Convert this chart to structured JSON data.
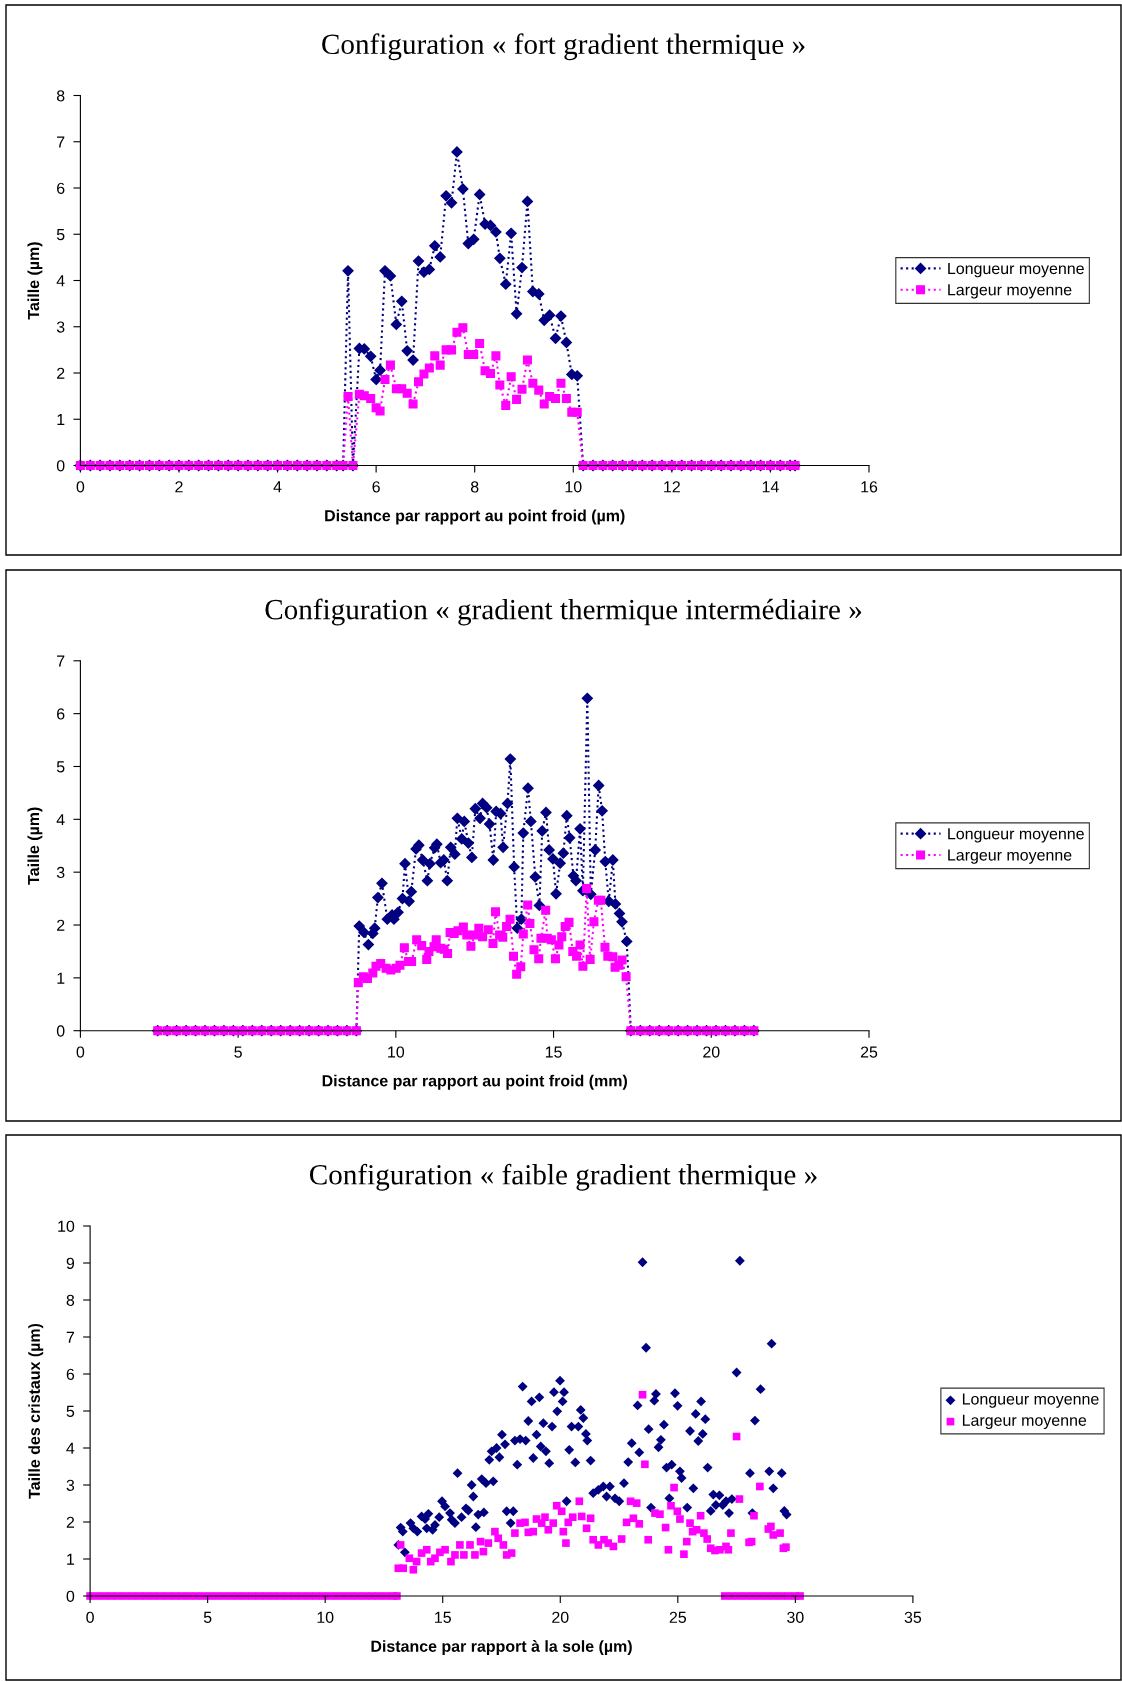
{
  "chart_data": [
    {
      "type": "line",
      "title": "Configuration « fort gradient thermique »",
      "xlabel": "Distance par rapport au point froid (µm)",
      "ylabel": "Taille (µm)",
      "xlim": [
        0,
        16
      ],
      "ylim": [
        0,
        8
      ],
      "xticks": [
        0,
        2,
        4,
        6,
        8,
        10,
        12,
        14,
        16
      ],
      "yticks": [
        0,
        1,
        2,
        3,
        4,
        5,
        6,
        7,
        8
      ],
      "line_style": "dotted",
      "legend": "right",
      "x": [
        0,
        0.2,
        0.4,
        0.6,
        0.8,
        1,
        1.2,
        1.4,
        1.6,
        1.8,
        2,
        2.2,
        2.4,
        2.6,
        2.8,
        3,
        3.2,
        3.4,
        3.6,
        3.8,
        4,
        4.2,
        4.4,
        4.6,
        4.8,
        5,
        5.2,
        5.33,
        5.43,
        5.53,
        5.66,
        5.76,
        5.89,
        6.0,
        6.08,
        6.18,
        6.29,
        6.41,
        6.52,
        6.63,
        6.75,
        6.86,
        6.97,
        7.08,
        7.19,
        7.3,
        7.42,
        7.53,
        7.64,
        7.76,
        7.87,
        7.98,
        8.1,
        8.21,
        8.32,
        8.43,
        8.51,
        8.63,
        8.74,
        8.85,
        8.96,
        9.07,
        9.18,
        9.3,
        9.41,
        9.52,
        9.64,
        9.75,
        9.86,
        9.97,
        10.08,
        10.2,
        10.4,
        10.6,
        10.8,
        11,
        11.2,
        11.4,
        11.6,
        11.8,
        12,
        12.2,
        12.4,
        12.6,
        12.8,
        13,
        13.2,
        13.4,
        13.6,
        13.8,
        14,
        14.2,
        14.4,
        14.5
      ],
      "series": [
        {
          "name": "Longueur moyenne",
          "color": "#000080",
          "marker": "diamond",
          "values": [
            0,
            0,
            0,
            0,
            0,
            0,
            0,
            0,
            0,
            0,
            0,
            0,
            0,
            0,
            0,
            0,
            0,
            0,
            0,
            0,
            0,
            0,
            0,
            0,
            0,
            0,
            0,
            0,
            4.21,
            0,
            2.53,
            2.52,
            2.36,
            1.86,
            2.06,
            4.21,
            4.1,
            3.05,
            3.55,
            2.48,
            2.28,
            4.42,
            4.18,
            4.24,
            4.75,
            4.51,
            5.83,
            5.68,
            6.78,
            5.98,
            4.8,
            4.89,
            5.86,
            5.22,
            5.19,
            5.05,
            4.48,
            3.92,
            5.02,
            3.28,
            4.28,
            5.71,
            3.76,
            3.71,
            3.14,
            3.25,
            2.75,
            3.23,
            2.66,
            1.97,
            1.94,
            0,
            0,
            0,
            0,
            0,
            0,
            0,
            0,
            0,
            0,
            0,
            0,
            0,
            0,
            0,
            0,
            0,
            0,
            0,
            0,
            0,
            0,
            0
          ]
        },
        {
          "name": "Largeur moyenne",
          "color": "#ff00ff",
          "marker": "square",
          "values": [
            0,
            0,
            0,
            0,
            0,
            0,
            0,
            0,
            0,
            0,
            0,
            0,
            0,
            0,
            0,
            0,
            0,
            0,
            0,
            0,
            0,
            0,
            0,
            0,
            0,
            0,
            0,
            0,
            1.49,
            0,
            1.54,
            1.51,
            1.45,
            1.25,
            1.18,
            1.86,
            2.17,
            1.66,
            1.66,
            1.56,
            1.33,
            1.81,
            1.98,
            2.11,
            2.37,
            2.17,
            2.5,
            2.5,
            2.88,
            2.98,
            2.4,
            2.4,
            2.64,
            2.05,
            1.99,
            2.37,
            1.74,
            1.3,
            1.92,
            1.43,
            1.65,
            2.28,
            1.78,
            1.63,
            1.33,
            1.49,
            1.45,
            1.78,
            1.45,
            1.15,
            1.15,
            0,
            0,
            0,
            0,
            0,
            0,
            0,
            0,
            0,
            0,
            0,
            0,
            0,
            0,
            0,
            0,
            0,
            0,
            0,
            0,
            0,
            0,
            0
          ]
        }
      ]
    },
    {
      "type": "line",
      "title": "Configuration « gradient thermique intermédiaire »",
      "xlabel": "Distance par rapport au point froid (mm)",
      "ylabel": "Taille (µm)",
      "xlim": [
        0,
        25
      ],
      "ylim": [
        0,
        7
      ],
      "xticks": [
        0,
        5,
        10,
        15,
        20,
        25
      ],
      "yticks": [
        0,
        1,
        2,
        3,
        4,
        5,
        6,
        7
      ],
      "line_style": "dotted",
      "legend": "right",
      "series": [
        {
          "name": "Longueur moyenne",
          "color": "#000080",
          "marker": "diamond",
          "x": [
            2.45,
            2.75,
            3.05,
            3.35,
            3.65,
            3.95,
            4.25,
            4.55,
            4.85,
            5.15,
            5.45,
            5.75,
            6.05,
            6.35,
            6.65,
            6.95,
            7.25,
            7.55,
            7.85,
            8.15,
            8.45,
            8.75,
            8.84,
            8.99,
            9.13,
            9.27,
            9.33,
            9.43,
            9.56,
            9.73,
            9.88,
            9.94,
            10.07,
            10.21,
            10.29,
            10.42,
            10.49,
            10.64,
            10.73,
            10.85,
            11.0,
            11.08,
            11.23,
            11.3,
            11.42,
            11.52,
            11.63,
            11.74,
            11.87,
            11.95,
            12.09,
            12.17,
            12.3,
            12.41,
            12.52,
            12.67,
            12.75,
            12.88,
            12.97,
            13.09,
            13.18,
            13.32,
            13.4,
            13.54,
            13.63,
            13.75,
            13.85,
            13.98,
            14.04,
            14.19,
            14.28,
            14.42,
            14.55,
            14.64,
            14.76,
            14.86,
            14.98,
            15.08,
            15.21,
            15.31,
            15.42,
            15.51,
            15.63,
            15.71,
            15.84,
            15.93,
            16.07,
            16.18,
            16.32,
            16.43,
            16.54,
            16.64,
            16.75,
            16.88,
            16.96,
            17.09,
            17.17,
            17.32,
            17.45,
            17.75,
            18.05,
            18.35,
            18.65,
            18.95,
            19.25,
            19.55,
            19.85,
            20.15,
            20.45,
            20.75,
            21.05,
            21.35
          ],
          "values": [
            0,
            0,
            0,
            0,
            0,
            0,
            0,
            0,
            0,
            0,
            0,
            0,
            0,
            0,
            0,
            0,
            0,
            0,
            0,
            0,
            0,
            0,
            1.98,
            1.86,
            1.63,
            1.84,
            1.94,
            2.52,
            2.79,
            2.11,
            2.19,
            2.11,
            2.24,
            2.5,
            3.16,
            2.45,
            2.63,
            3.44,
            3.51,
            3.23,
            2.84,
            3.16,
            3.46,
            3.53,
            3.18,
            3.23,
            2.84,
            3.47,
            3.34,
            4.02,
            3.63,
            3.96,
            3.55,
            3.28,
            4.2,
            4.02,
            4.3,
            4.22,
            3.91,
            3.23,
            4.15,
            4.11,
            3.47,
            4.3,
            5.14,
            3.1,
            1.94,
            2.11,
            3.74,
            4.59,
            3.96,
            2.91,
            2.37,
            3.78,
            4.13,
            3.42,
            3.25,
            2.59,
            3.17,
            3.36,
            4.07,
            3.65,
            2.93,
            2.84,
            3.82,
            2.65,
            6.29,
            2.58,
            3.42,
            4.64,
            4.16,
            3.2,
            2.45,
            3.23,
            2.4,
            2.22,
            2.06,
            1.69,
            0,
            0,
            0,
            0,
            0,
            0,
            0,
            0,
            0,
            0,
            0,
            0,
            0,
            0
          ]
        },
        {
          "name": "Largeur moyenne",
          "color": "#ff00ff",
          "marker": "square",
          "x": [
            2.45,
            2.75,
            3.05,
            3.35,
            3.65,
            3.95,
            4.25,
            4.55,
            4.85,
            5.15,
            5.45,
            5.75,
            6.05,
            6.35,
            6.65,
            6.95,
            7.25,
            7.55,
            7.85,
            8.15,
            8.45,
            8.75,
            8.81,
            8.97,
            9.1,
            9.27,
            9.37,
            9.52,
            9.69,
            9.84,
            10.01,
            10.13,
            10.27,
            10.4,
            10.5,
            10.66,
            10.82,
            10.98,
            11.05,
            11.21,
            11.28,
            11.42,
            11.53,
            11.64,
            11.72,
            11.85,
            11.97,
            12.14,
            12.25,
            12.38,
            12.51,
            12.63,
            12.75,
            12.93,
            13.08,
            13.16,
            13.29,
            13.39,
            13.51,
            13.62,
            13.73,
            13.83,
            13.96,
            14.04,
            14.18,
            14.25,
            14.38,
            14.53,
            14.6,
            14.75,
            14.8,
            14.93,
            15.06,
            15.17,
            15.26,
            15.37,
            15.49,
            15.61,
            15.73,
            15.84,
            15.93,
            16.05,
            16.16,
            16.28,
            16.42,
            16.5,
            16.63,
            16.72,
            16.88,
            16.95,
            17.07,
            17.17,
            17.3,
            17.45,
            17.75,
            18.05,
            18.35,
            18.65,
            18.95,
            19.25,
            19.55,
            19.85,
            20.15,
            20.45,
            20.75,
            21.05,
            21.35
          ],
          "values": [
            0,
            0,
            0,
            0,
            0,
            0,
            0,
            0,
            0,
            0,
            0,
            0,
            0,
            0,
            0,
            0,
            0,
            0,
            0,
            0,
            0,
            0,
            0.91,
            1.02,
            0.99,
            1.09,
            1.22,
            1.27,
            1.18,
            1.15,
            1.18,
            1.24,
            1.57,
            1.31,
            1.31,
            1.72,
            1.61,
            1.35,
            1.5,
            1.59,
            1.72,
            1.56,
            1.54,
            1.46,
            1.86,
            1.84,
            1.89,
            1.96,
            1.81,
            1.6,
            1.81,
            1.94,
            1.78,
            1.91,
            1.65,
            2.25,
            1.81,
            1.77,
            1.97,
            2.11,
            1.41,
            1.07,
            1.21,
            1.83,
            2.38,
            2.03,
            1.53,
            1.36,
            1.75,
            2.28,
            1.75,
            1.72,
            1.36,
            1.62,
            1.78,
            1.97,
            2.05,
            1.5,
            1.41,
            1.62,
            1.22,
            2.69,
            1.35,
            2.06,
            2.47,
            2.47,
            1.58,
            1.41,
            1.4,
            1.2,
            1.24,
            1.34,
            1.02,
            0,
            0,
            0,
            0,
            0,
            0,
            0,
            0,
            0,
            0,
            0,
            0,
            0,
            0
          ]
        }
      ]
    },
    {
      "type": "scatter",
      "title": "Configuration « faible gradient thermique »",
      "xlabel": "Distance par rapport à la sole (µm)",
      "ylabel": "Taille des cristaux (µm)",
      "xlim": [
        0,
        35
      ],
      "ylim": [
        0,
        10
      ],
      "xticks": [
        0,
        5,
        10,
        15,
        20,
        25,
        30,
        35
      ],
      "yticks": [
        0,
        1,
        2,
        3,
        4,
        5,
        6,
        7,
        8,
        9,
        10
      ],
      "legend": "right",
      "series": [
        {
          "name": "Longueur moyenne",
          "color": "#000080",
          "marker": "diamond",
          "x": [
            13.21,
            13.3,
            13.11,
            13.39,
            13.63,
            13.75,
            13.92,
            14.1,
            14.25,
            14.39,
            14.32,
            14.57,
            14.67,
            14.85,
            14.97,
            15.1,
            15.31,
            15.38,
            15.52,
            15.63,
            15.8,
            15.99,
            16.09,
            16.23,
            16.3,
            16.41,
            16.51,
            16.75,
            16.66,
            16.84,
            17.15,
            16.98,
            17.08,
            17.29,
            17.41,
            17.52,
            17.65,
            17.72,
            17.89,
            18.0,
            18.07,
            18.17,
            18.29,
            18.53,
            18.4,
            18.64,
            18.78,
            18.85,
            18.99,
            19.11,
            19.17,
            19.28,
            19.39,
            19.53,
            19.65,
            19.73,
            19.87,
            19.99,
            20.1,
            20.16,
            20.27,
            20.38,
            20.48,
            20.64,
            20.77,
            20.87,
            20.98,
            21.09,
            21.15,
            21.29,
            21.4,
            21.62,
            21.83,
            21.97,
            22.11,
            22.33,
            22.51,
            22.71,
            22.89,
            23.04,
            23.36,
            23.29,
            23.5,
            23.65,
            23.76,
            23.86,
            24.0,
            24.07,
            24.18,
            24.28,
            24.41,
            24.52,
            24.64,
            24.74,
            24.88,
            24.99,
            25.09,
            25.16,
            25.4,
            25.52,
            25.66,
            25.76,
            25.87,
            25.99,
            26.06,
            26.17,
            26.27,
            26.4,
            26.51,
            26.62,
            26.77,
            26.91,
            27.05,
            27.18,
            27.3,
            27.5,
            27.64,
            28.07,
            28.17,
            28.28,
            28.52,
            28.89,
            28.99,
            29.06,
            29.42,
            29.53,
            29.63
          ],
          "values": [
            1.85,
            1.74,
            1.38,
            1.18,
            1.97,
            1.83,
            1.74,
            2.15,
            2.08,
            2.22,
            1.83,
            1.79,
            1.92,
            2.13,
            2.56,
            2.42,
            2.24,
            2.06,
            1.97,
            3.32,
            2.13,
            2.37,
            2.31,
            3.0,
            2.69,
            1.86,
            2.2,
            2.26,
            3.16,
            3.05,
            3.1,
            3.68,
            3.91,
            4.0,
            3.75,
            4.36,
            4.1,
            2.29,
            1.97,
            2.29,
            4.2,
            3.55,
            4.24,
            4.2,
            5.66,
            4.73,
            5.26,
            3.73,
            4.36,
            5.37,
            4.04,
            4.67,
            3.91,
            3.59,
            4.58,
            5.51,
            4.99,
            5.82,
            5.26,
            5.51,
            2.56,
            3.95,
            4.58,
            3.61,
            4.58,
            5.03,
            4.81,
            4.38,
            4.2,
            3.66,
            2.78,
            2.87,
            2.96,
            2.69,
            2.96,
            2.64,
            2.56,
            3.05,
            3.62,
            4.13,
            3.88,
            5.15,
            9.02,
            6.71,
            4.51,
            2.39,
            5.28,
            5.46,
            4.02,
            4.22,
            4.63,
            3.47,
            2.64,
            3.55,
            5.48,
            5.14,
            3.37,
            3.19,
            2.39,
            4.46,
            2.91,
            4.92,
            4.19,
            5.26,
            4.38,
            4.78,
            3.47,
            2.3,
            2.74,
            2.46,
            2.72,
            2.46,
            2.56,
            2.24,
            2.62,
            6.04,
            9.06,
            3.32,
            2.24,
            4.74,
            5.59,
            3.37,
            6.82,
            2.91,
            3.32,
            2.3,
            2.2
          ]
        },
        {
          "name": "Largeur moyenne",
          "color": "#ff00ff",
          "marker": "square",
          "x": [
            0,
            0.3,
            0.6,
            0.9,
            1.2,
            1.5,
            1.8,
            2.1,
            2.4,
            2.7,
            3,
            3.3,
            3.6,
            3.9,
            4.2,
            4.5,
            4.8,
            5.1,
            5.4,
            5.7,
            6,
            6.3,
            6.6,
            6.9,
            7.2,
            7.5,
            7.8,
            8.1,
            8.4,
            8.7,
            9,
            9.3,
            9.6,
            9.9,
            10.2,
            10.5,
            10.8,
            11.1,
            11.4,
            11.7,
            12,
            12.3,
            12.6,
            12.9,
            13.05,
            13.21,
            13.11,
            13.32,
            13.58,
            13.75,
            13.89,
            14.1,
            14.32,
            14.49,
            14.67,
            14.88,
            15.1,
            15.35,
            15.52,
            15.73,
            15.9,
            16.16,
            16.37,
            16.61,
            16.73,
            16.94,
            17.22,
            17.36,
            17.58,
            17.72,
            17.93,
            18.07,
            18.29,
            18.5,
            18.64,
            18.85,
            18.99,
            19.21,
            19.35,
            19.49,
            19.7,
            19.85,
            20.06,
            20.13,
            20.24,
            20.34,
            20.53,
            20.81,
            20.91,
            21.12,
            21.29,
            21.4,
            21.62,
            21.86,
            22.04,
            22.26,
            22.61,
            22.82,
            23.11,
            23.36,
            22.99,
            23.25,
            23.5,
            23.6,
            23.74,
            24.03,
            24.24,
            24.48,
            24.6,
            24.71,
            24.84,
            24.98,
            25.09,
            25.26,
            25.38,
            25.52,
            25.63,
            25.8,
            25.97,
            26.11,
            26.25,
            26.4,
            26.58,
            26.79,
            27.05,
            27.15,
            27.26,
            27.5,
            27.62,
            28.03,
            28.14,
            28.24,
            28.49,
            28.85,
            28.96,
            29.06,
            29.35,
            29.49,
            29.6,
            27.0,
            27.3,
            27.6,
            27.9,
            28.2,
            28.5,
            28.8,
            29.1,
            29.4,
            29.7,
            30.0,
            30.2
          ],
          "values": [
            0,
            0,
            0,
            0,
            0,
            0,
            0,
            0,
            0,
            0,
            0,
            0,
            0,
            0,
            0,
            0,
            0,
            0,
            0,
            0,
            0,
            0,
            0,
            0,
            0,
            0,
            0,
            0,
            0,
            0,
            0,
            0,
            0,
            0,
            0,
            0,
            0,
            0,
            0,
            0,
            0,
            0,
            0,
            0,
            0,
            1.38,
            0.75,
            0.75,
            1.02,
            0.71,
            0.93,
            1.16,
            1.25,
            0.93,
            1.02,
            1.18,
            1.25,
            0.93,
            1.11,
            1.38,
            1.11,
            1.38,
            1.11,
            1.47,
            1.2,
            1.43,
            1.74,
            1.56,
            1.38,
            1.11,
            1.16,
            1.7,
            1.97,
            1.99,
            1.72,
            1.74,
            2.08,
            1.97,
            2.13,
            1.79,
            1.97,
            2.44,
            2.29,
            1.74,
            1.43,
            1.99,
            2.13,
            2.56,
            2.15,
            1.83,
            2.1,
            1.52,
            1.38,
            1.52,
            1.43,
            1.34,
            1.54,
            1.99,
            2.1,
            1.95,
            2.56,
            2.51,
            5.44,
            3.56,
            1.52,
            2.24,
            2.21,
            1.85,
            1.25,
            2.44,
            2.93,
            2.29,
            2.08,
            1.13,
            1.47,
            1.97,
            1.74,
            1.79,
            2.17,
            1.7,
            1.54,
            1.29,
            1.23,
            1.25,
            1.34,
            1.25,
            1.7,
            4.31,
            2.62,
            1.45,
            1.47,
            2.17,
            2.96,
            1.81,
            1.88,
            1.65,
            1.7,
            1.29,
            1.32,
            0,
            0,
            0,
            0,
            0,
            0,
            0,
            0,
            0,
            0,
            0,
            0
          ]
        }
      ]
    }
  ]
}
